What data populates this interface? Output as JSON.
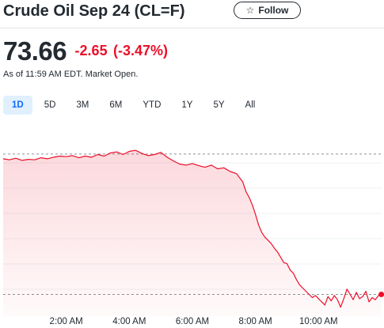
{
  "header": {
    "title": "Crude Oil Sep 24 (CL=F)",
    "follow_label": "Follow",
    "follow_icon": "star-outline-icon"
  },
  "quote": {
    "price": "73.66",
    "change": "-2.65",
    "change_percent": "(-3.47%)",
    "as_of": "As of 11:59 AM EDT. Market Open.",
    "change_color": "#eb0f29"
  },
  "ranges": [
    {
      "label": "1D",
      "active": true
    },
    {
      "label": "5D",
      "active": false
    },
    {
      "label": "3M",
      "active": false
    },
    {
      "label": "6M",
      "active": false
    },
    {
      "label": "YTD",
      "active": false
    },
    {
      "label": "1Y",
      "active": false
    },
    {
      "label": "5Y",
      "active": false
    },
    {
      "label": "All",
      "active": false
    }
  ],
  "chart_data": {
    "type": "area",
    "title": "",
    "xlabel": "",
    "ylabel": "",
    "x_tick_labels": [
      "2:00 AM",
      "4:00 AM",
      "6:00 AM",
      "8:00 AM",
      "10:00 AM"
    ],
    "x_tick_hours": [
      2,
      4,
      6,
      8,
      10
    ],
    "x_range_hours": [
      0,
      12
    ],
    "series": [
      {
        "x_hours": [
          0.0,
          0.2,
          0.4,
          0.6,
          0.8,
          1.0,
          1.2,
          1.4,
          1.6,
          1.8,
          2.0,
          2.2,
          2.4,
          2.6,
          2.8,
          3.0,
          3.2,
          3.4,
          3.6,
          3.8,
          4.0,
          4.2,
          4.4,
          4.6,
          4.8,
          5.0,
          5.2,
          5.4,
          5.6,
          5.8,
          6.0,
          6.2,
          6.4,
          6.6,
          6.8,
          7.0,
          7.2,
          7.4,
          7.6,
          7.7,
          7.8,
          7.9,
          8.0,
          8.1,
          8.2,
          8.3,
          8.4,
          8.5,
          8.6,
          8.7,
          8.8,
          8.9,
          9.0,
          9.1,
          9.2,
          9.3,
          9.4,
          9.5,
          9.6,
          9.7,
          9.8,
          9.9,
          10.0,
          10.1,
          10.2,
          10.3,
          10.4,
          10.5,
          10.6,
          10.7,
          10.8,
          10.9,
          11.0,
          11.1,
          11.2,
          11.3,
          11.4,
          11.5,
          11.6,
          11.7,
          11.8,
          11.9,
          11.99
        ],
        "values": [
          76.22,
          76.2,
          76.23,
          76.19,
          76.21,
          76.2,
          76.24,
          76.22,
          76.25,
          76.27,
          76.26,
          76.28,
          76.24,
          76.27,
          76.25,
          76.3,
          76.27,
          76.33,
          76.35,
          76.3,
          76.36,
          76.38,
          76.32,
          76.28,
          76.3,
          76.34,
          76.25,
          76.18,
          76.12,
          76.1,
          76.13,
          76.09,
          76.06,
          76.1,
          76.03,
          76.05,
          75.98,
          75.94,
          75.78,
          75.6,
          75.49,
          75.35,
          75.17,
          74.97,
          74.83,
          74.74,
          74.68,
          74.62,
          74.53,
          74.46,
          74.36,
          74.26,
          74.24,
          74.12,
          74.06,
          73.94,
          73.84,
          73.78,
          73.72,
          73.66,
          73.6,
          73.64,
          73.58,
          73.52,
          73.46,
          73.62,
          73.54,
          73.64,
          73.56,
          73.42,
          73.58,
          73.76,
          73.66,
          73.56,
          73.7,
          73.58,
          73.62,
          73.72,
          73.52,
          73.6,
          73.56,
          73.64,
          73.66
        ],
        "color": "#eb0f29"
      }
    ],
    "reference_lines": [
      76.31,
      73.66
    ],
    "ylim": [
      73.25,
      76.83
    ],
    "grid": "horizontal",
    "legend": "none",
    "current_point": {
      "x_hours": 11.99,
      "value": 73.66
    }
  }
}
